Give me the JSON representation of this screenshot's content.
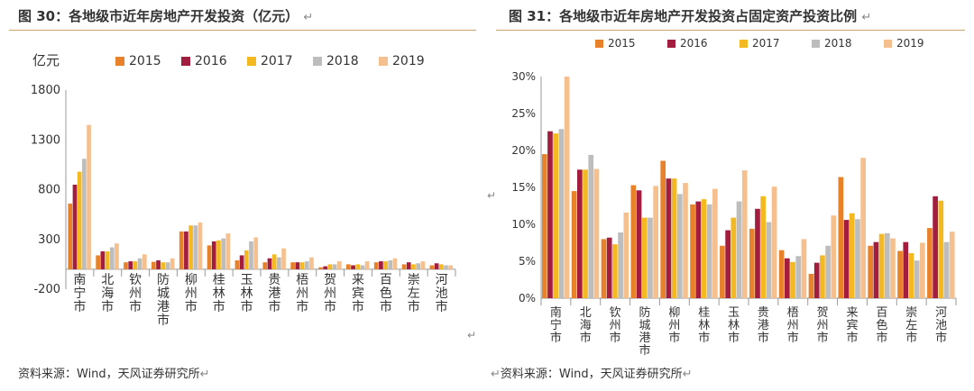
{
  "left": {
    "figure_title": "图 30：各地级市近年房地产开发投资（亿元）",
    "return_mark": "↵",
    "source": "资料来源：Wind，天风证券研究所",
    "chart_data": {
      "type": "bar",
      "unit_label": "亿元",
      "ylim": [
        -200,
        1800
      ],
      "yticks": [
        -200,
        300,
        800,
        1300,
        1800
      ],
      "categories": [
        "南宁市",
        "北海市",
        "钦州市",
        "防城港市",
        "柳州市",
        "桂林市",
        "玉林市",
        "贵港市",
        "梧州市",
        "贺州市",
        "来宾市",
        "百色市",
        "崇左市",
        "河池市"
      ],
      "series": [
        {
          "name": "2015",
          "color": "#e8822a",
          "values": [
            660,
            140,
            70,
            75,
            380,
            240,
            90,
            70,
            70,
            20,
            50,
            70,
            50,
            40
          ]
        },
        {
          "name": "2016",
          "color": "#a31d3f",
          "values": [
            850,
            180,
            80,
            90,
            380,
            280,
            140,
            110,
            70,
            30,
            40,
            80,
            70,
            60
          ]
        },
        {
          "name": "2017",
          "color": "#f4b921",
          "values": [
            980,
            180,
            80,
            70,
            440,
            290,
            190,
            150,
            70,
            50,
            50,
            80,
            50,
            50
          ]
        },
        {
          "name": "2018",
          "color": "#bdbdbd",
          "values": [
            1110,
            220,
            110,
            70,
            440,
            310,
            280,
            120,
            80,
            50,
            40,
            90,
            60,
            40
          ]
        },
        {
          "name": "2019",
          "color": "#f6c08e",
          "values": [
            1450,
            260,
            150,
            110,
            470,
            360,
            320,
            210,
            120,
            80,
            80,
            110,
            80,
            40
          ]
        }
      ]
    }
  },
  "right": {
    "figure_title": "图 31：各地级市近年房地产开发投资占固定资产投资比例",
    "return_mark": "↵",
    "source": "资料来源：Wind，天风证券研究所",
    "chart_data": {
      "type": "bar",
      "ylim": [
        0,
        30
      ],
      "yticks": [
        "0%",
        "5%",
        "10%",
        "15%",
        "20%",
        "25%",
        "30%"
      ],
      "categories": [
        "南宁市",
        "北海市",
        "钦州市",
        "防城港市",
        "柳州市",
        "桂林市",
        "玉林市",
        "贵港市",
        "梧州市",
        "贺州市",
        "来宾市",
        "百色市",
        "崇左市",
        "河池市"
      ],
      "series": [
        {
          "name": "2015",
          "color": "#e8822a",
          "values": [
            19.5,
            14.5,
            8.0,
            15.3,
            18.6,
            12.7,
            7.1,
            9.4,
            6.5,
            3.3,
            16.4,
            7.1,
            6.4,
            9.5
          ]
        },
        {
          "name": "2016",
          "color": "#a31d3f",
          "values": [
            22.6,
            17.4,
            8.2,
            14.6,
            16.2,
            13.1,
            9.2,
            12.1,
            5.4,
            4.8,
            10.6,
            7.6,
            7.6,
            13.8
          ]
        },
        {
          "name": "2017",
          "color": "#f4b921",
          "values": [
            22.3,
            17.4,
            7.3,
            10.9,
            16.2,
            13.4,
            10.9,
            13.8,
            4.9,
            5.8,
            11.5,
            8.7,
            6.1,
            13.2
          ]
        },
        {
          "name": "2018",
          "color": "#bdbdbd",
          "values": [
            22.9,
            19.4,
            8.9,
            10.9,
            14.1,
            12.7,
            13.1,
            10.3,
            5.7,
            7.1,
            10.7,
            8.8,
            5.1,
            7.6
          ]
        },
        {
          "name": "2019",
          "color": "#f6c08e",
          "values": [
            30.0,
            17.5,
            11.6,
            15.2,
            15.6,
            14.8,
            17.3,
            15.1,
            8.0,
            11.2,
            19.0,
            8.1,
            7.5,
            9.0
          ]
        }
      ]
    }
  }
}
